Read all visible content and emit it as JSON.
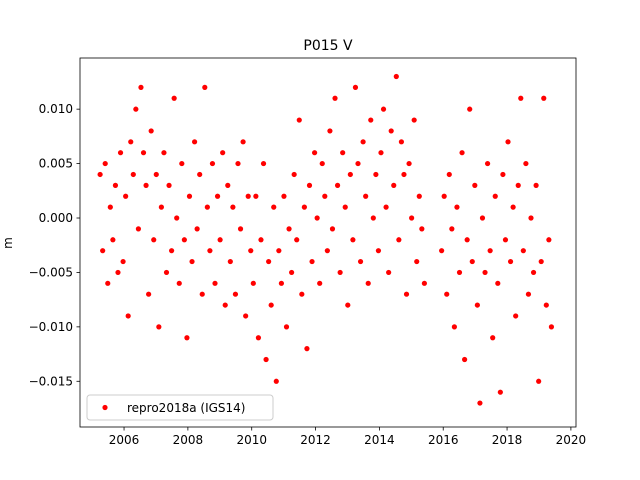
{
  "chart_data": {
    "type": "scatter",
    "title": "P015 V",
    "y_label": "m",
    "x": [
      2005.25,
      2005.33,
      2005.41,
      2005.49,
      2005.57,
      2005.65,
      2005.73,
      2005.81,
      2005.89,
      2005.97,
      2006.05,
      2006.13,
      2006.21,
      2006.29,
      2006.37,
      2006.45,
      2006.53,
      2006.61,
      2006.69,
      2006.77,
      2006.85,
      2006.93,
      2007.01,
      2007.09,
      2007.17,
      2007.25,
      2007.33,
      2007.41,
      2007.49,
      2007.57,
      2007.65,
      2007.73,
      2007.81,
      2007.89,
      2007.97,
      2008.05,
      2008.13,
      2008.21,
      2008.29,
      2008.37,
      2008.45,
      2008.53,
      2008.61,
      2008.69,
      2008.77,
      2008.85,
      2008.93,
      2009.01,
      2009.09,
      2009.17,
      2009.25,
      2009.33,
      2009.41,
      2009.49,
      2009.57,
      2009.65,
      2009.73,
      2009.81,
      2009.89,
      2009.97,
      2010.05,
      2010.13,
      2010.21,
      2010.29,
      2010.37,
      2010.45,
      2010.53,
      2010.61,
      2010.69,
      2010.77,
      2010.85,
      2010.93,
      2011.01,
      2011.09,
      2011.17,
      2011.25,
      2011.33,
      2011.41,
      2011.49,
      2011.57,
      2011.65,
      2011.73,
      2011.81,
      2011.89,
      2011.97,
      2012.05,
      2012.13,
      2012.21,
      2012.29,
      2012.37,
      2012.45,
      2012.53,
      2012.61,
      2012.69,
      2012.77,
      2012.85,
      2012.93,
      2013.01,
      2013.09,
      2013.17,
      2013.25,
      2013.33,
      2013.41,
      2013.49,
      2013.57,
      2013.65,
      2013.73,
      2013.81,
      2013.89,
      2013.97,
      2014.05,
      2014.13,
      2014.21,
      2014.29,
      2014.37,
      2014.45,
      2014.53,
      2014.61,
      2014.69,
      2014.77,
      2014.85,
      2014.93,
      2015.01,
      2015.09,
      2015.17,
      2015.25,
      2015.33,
      2015.41,
      2015.95,
      2016.03,
      2016.11,
      2016.19,
      2016.27,
      2016.35,
      2016.43,
      2016.51,
      2016.59,
      2016.67,
      2016.75,
      2016.83,
      2016.91,
      2016.99,
      2017.07,
      2017.15,
      2017.23,
      2017.31,
      2017.39,
      2017.47,
      2017.55,
      2017.63,
      2017.71,
      2017.79,
      2017.87,
      2017.95,
      2018.03,
      2018.11,
      2018.19,
      2018.27,
      2018.35,
      2018.43,
      2018.51,
      2018.59,
      2018.67,
      2018.75,
      2018.83,
      2018.91,
      2018.99,
      2019.07,
      2019.15,
      2019.23,
      2019.31,
      2019.39
    ],
    "series": [
      {
        "name": "repro2018a (IGS14)",
        "color": "#ff0000",
        "values": [
          0.004,
          -0.003,
          0.005,
          -0.006,
          0.001,
          -0.002,
          0.003,
          -0.005,
          0.006,
          -0.004,
          0.002,
          -0.009,
          0.007,
          0.004,
          0.01,
          -0.001,
          0.012,
          0.006,
          0.003,
          -0.007,
          0.008,
          -0.002,
          0.004,
          -0.01,
          0.001,
          0.006,
          -0.005,
          0.003,
          -0.003,
          0.011,
          0.0,
          -0.006,
          0.005,
          -0.002,
          -0.011,
          0.002,
          -0.004,
          0.007,
          -0.001,
          0.004,
          -0.007,
          0.012,
          0.001,
          -0.003,
          0.005,
          -0.006,
          0.002,
          -0.002,
          0.006,
          -0.008,
          0.003,
          -0.004,
          0.001,
          -0.007,
          0.005,
          -0.001,
          0.007,
          -0.009,
          0.002,
          -0.003,
          -0.006,
          0.002,
          -0.011,
          -0.002,
          0.005,
          -0.013,
          -0.004,
          -0.008,
          0.001,
          -0.015,
          -0.003,
          -0.006,
          0.002,
          -0.01,
          -0.001,
          -0.005,
          0.004,
          -0.002,
          0.009,
          -0.007,
          0.001,
          -0.012,
          0.003,
          -0.004,
          0.006,
          0.0,
          -0.006,
          0.005,
          0.002,
          -0.003,
          0.008,
          -0.001,
          0.011,
          0.003,
          -0.005,
          0.006,
          0.001,
          -0.008,
          0.004,
          -0.002,
          0.012,
          0.005,
          -0.004,
          0.007,
          0.002,
          -0.006,
          0.009,
          0.0,
          0.004,
          -0.003,
          0.006,
          0.01,
          0.001,
          -0.005,
          0.008,
          0.003,
          0.013,
          -0.002,
          0.007,
          0.004,
          -0.007,
          0.005,
          0.0,
          0.009,
          -0.004,
          0.002,
          -0.001,
          -0.006,
          -0.003,
          0.002,
          -0.007,
          0.004,
          -0.001,
          -0.01,
          0.001,
          -0.005,
          0.006,
          -0.013,
          -0.002,
          0.01,
          -0.004,
          0.003,
          -0.008,
          -0.017,
          0.0,
          -0.005,
          0.005,
          -0.003,
          -0.011,
          0.002,
          -0.006,
          -0.016,
          0.004,
          -0.002,
          0.007,
          -0.004,
          0.001,
          -0.009,
          0.003,
          0.011,
          -0.003,
          0.005,
          -0.007,
          0.0,
          -0.005,
          0.003,
          -0.015,
          -0.004,
          0.011,
          -0.008,
          -0.002,
          -0.01
        ]
      }
    ],
    "xlim": [
      2004.62,
      2020.16
    ],
    "ylim": [
      -0.0192,
      0.0147
    ],
    "xticks": [
      2006,
      2008,
      2010,
      2012,
      2014,
      2016,
      2018,
      2020
    ],
    "yticks": [
      {
        "value": -0.015,
        "label": "−0.015"
      },
      {
        "value": -0.01,
        "label": "−0.010"
      },
      {
        "value": -0.005,
        "label": "−0.005"
      },
      {
        "value": 0,
        "label": "0.000"
      },
      {
        "value": 0.005,
        "label": "0.005"
      },
      {
        "value": 0.01,
        "label": "0.010"
      }
    ],
    "legend": "lower left"
  }
}
